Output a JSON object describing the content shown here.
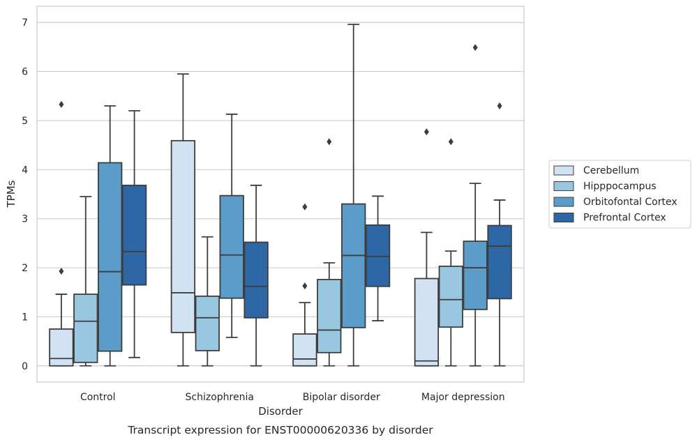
{
  "chart_data": {
    "type": "box",
    "title": "",
    "caption": "Transcript expression for ENST00000620336 by disorder",
    "xlabel": "Disorder",
    "ylabel": "TPMs",
    "ylim": [
      -0.33,
      7.33
    ],
    "yticks": [
      "0",
      "1",
      "2",
      "3",
      "4",
      "5",
      "6",
      "7"
    ],
    "grid": "horizontal",
    "legend_position": "right",
    "categories": [
      "Control",
      "Schizophrenia",
      "Bipolar disorder",
      "Major depression"
    ],
    "series": [
      {
        "name": "Cerebellum",
        "color": "#d1e2f2",
        "boxes": [
          {
            "whislo": 0.0,
            "q1": 0.0,
            "med": 0.15,
            "q3": 0.75,
            "whishi": 1.46,
            "fliers": [
              1.93,
              5.33
            ]
          },
          {
            "whislo": 0.0,
            "q1": 0.68,
            "med": 1.49,
            "q3": 4.59,
            "whishi": 5.95,
            "fliers": []
          },
          {
            "whislo": 0.0,
            "q1": 0.0,
            "med": 0.14,
            "q3": 0.65,
            "whishi": 1.29,
            "fliers": [
              1.63,
              3.24
            ]
          },
          {
            "whislo": 0.0,
            "q1": 0.0,
            "med": 0.1,
            "q3": 1.78,
            "whishi": 2.72,
            "fliers": [
              4.77
            ]
          }
        ]
      },
      {
        "name": "Hipppocampus",
        "color": "#9ac7e0",
        "boxes": [
          {
            "whislo": 0.0,
            "q1": 0.07,
            "med": 0.91,
            "q3": 1.46,
            "whishi": 3.45,
            "fliers": []
          },
          {
            "whislo": 0.0,
            "q1": 0.31,
            "med": 0.98,
            "q3": 1.42,
            "whishi": 2.63,
            "fliers": []
          },
          {
            "whislo": 0.0,
            "q1": 0.27,
            "med": 0.73,
            "q3": 1.76,
            "whishi": 2.1,
            "fliers": [
              4.57
            ]
          },
          {
            "whislo": 0.0,
            "q1": 0.79,
            "med": 1.35,
            "q3": 2.03,
            "whishi": 2.34,
            "fliers": [
              4.57
            ]
          }
        ]
      },
      {
        "name": "Orbitofontal Cortex",
        "color": "#5b9cc8",
        "boxes": [
          {
            "whislo": 0.0,
            "q1": 0.3,
            "med": 1.92,
            "q3": 4.14,
            "whishi": 5.3,
            "fliers": []
          },
          {
            "whislo": 0.58,
            "q1": 1.38,
            "med": 2.26,
            "q3": 3.47,
            "whishi": 5.13,
            "fliers": []
          },
          {
            "whislo": 0.0,
            "q1": 0.78,
            "med": 2.25,
            "q3": 3.3,
            "whishi": 6.96,
            "fliers": []
          },
          {
            "whislo": 0.0,
            "q1": 1.15,
            "med": 2.0,
            "q3": 2.54,
            "whishi": 3.72,
            "fliers": [
              6.49
            ]
          }
        ]
      },
      {
        "name": "Prefrontal Cortex",
        "color": "#2e67a6",
        "boxes": [
          {
            "whislo": 0.17,
            "q1": 1.65,
            "med": 2.33,
            "q3": 3.68,
            "whishi": 5.2,
            "fliers": []
          },
          {
            "whislo": 0.0,
            "q1": 0.98,
            "med": 1.62,
            "q3": 2.52,
            "whishi": 3.68,
            "fliers": []
          },
          {
            "whislo": 0.92,
            "q1": 1.62,
            "med": 2.23,
            "q3": 2.87,
            "whishi": 3.46,
            "fliers": []
          },
          {
            "whislo": 0.0,
            "q1": 1.37,
            "med": 2.44,
            "q3": 2.86,
            "whishi": 3.38,
            "fliers": [
              5.3
            ]
          }
        ]
      }
    ]
  }
}
